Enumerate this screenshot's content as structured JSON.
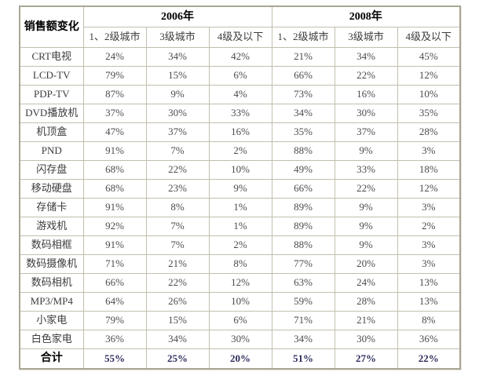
{
  "chart_data": {
    "type": "table",
    "corner_label": "销售额变化",
    "year_groups": [
      {
        "label": "2006年",
        "colspan": 3
      },
      {
        "label": "2008年",
        "colspan": 3
      }
    ],
    "city_columns": [
      "1、2级城市",
      "3级城市",
      "4级及以下"
    ],
    "rows": [
      {
        "label": "CRT电视",
        "values": [
          "24%",
          "34%",
          "42%",
          "21%",
          "34%",
          "45%"
        ]
      },
      {
        "label": "LCD-TV",
        "values": [
          "79%",
          "15%",
          "6%",
          "66%",
          "22%",
          "12%"
        ]
      },
      {
        "label": "PDP-TV",
        "values": [
          "87%",
          "9%",
          "4%",
          "73%",
          "16%",
          "10%"
        ]
      },
      {
        "label": "DVD播放机",
        "values": [
          "37%",
          "30%",
          "33%",
          "34%",
          "30%",
          "35%"
        ]
      },
      {
        "label": "机顶盒",
        "values": [
          "47%",
          "37%",
          "16%",
          "35%",
          "37%",
          "28%"
        ]
      },
      {
        "label": "PND",
        "values": [
          "91%",
          "7%",
          "2%",
          "88%",
          "9%",
          "3%"
        ]
      },
      {
        "label": "闪存盘",
        "values": [
          "68%",
          "22%",
          "10%",
          "49%",
          "33%",
          "18%"
        ]
      },
      {
        "label": "移动硬盘",
        "values": [
          "68%",
          "23%",
          "9%",
          "66%",
          "22%",
          "12%"
        ]
      },
      {
        "label": "存储卡",
        "values": [
          "91%",
          "8%",
          "1%",
          "89%",
          "9%",
          "3%"
        ]
      },
      {
        "label": "游戏机",
        "values": [
          "92%",
          "7%",
          "1%",
          "89%",
          "9%",
          "2%"
        ]
      },
      {
        "label": "数码相框",
        "values": [
          "91%",
          "7%",
          "2%",
          "88%",
          "9%",
          "3%"
        ]
      },
      {
        "label": "数码摄像机",
        "values": [
          "71%",
          "21%",
          "8%",
          "77%",
          "20%",
          "3%"
        ]
      },
      {
        "label": "数码相机",
        "values": [
          "66%",
          "22%",
          "12%",
          "63%",
          "24%",
          "13%"
        ]
      },
      {
        "label": "MP3/MP4",
        "values": [
          "64%",
          "26%",
          "10%",
          "59%",
          "28%",
          "13%"
        ]
      },
      {
        "label": "小家电",
        "values": [
          "79%",
          "15%",
          "6%",
          "71%",
          "21%",
          "8%"
        ]
      },
      {
        "label": "白色家电",
        "values": [
          "36%",
          "34%",
          "30%",
          "34%",
          "30%",
          "36%"
        ]
      }
    ],
    "total_row": {
      "label": "合计",
      "values": [
        "55%",
        "25%",
        "20%",
        "51%",
        "27%",
        "22%"
      ]
    }
  },
  "colors": {
    "background": "#ffffff",
    "border": "#c2bfae",
    "outer_border": "#a9a695",
    "text": "#4c4c4c",
    "label_text": "#3c3c3c",
    "header_text": "#000000",
    "total_text": "#2d2d5e"
  }
}
